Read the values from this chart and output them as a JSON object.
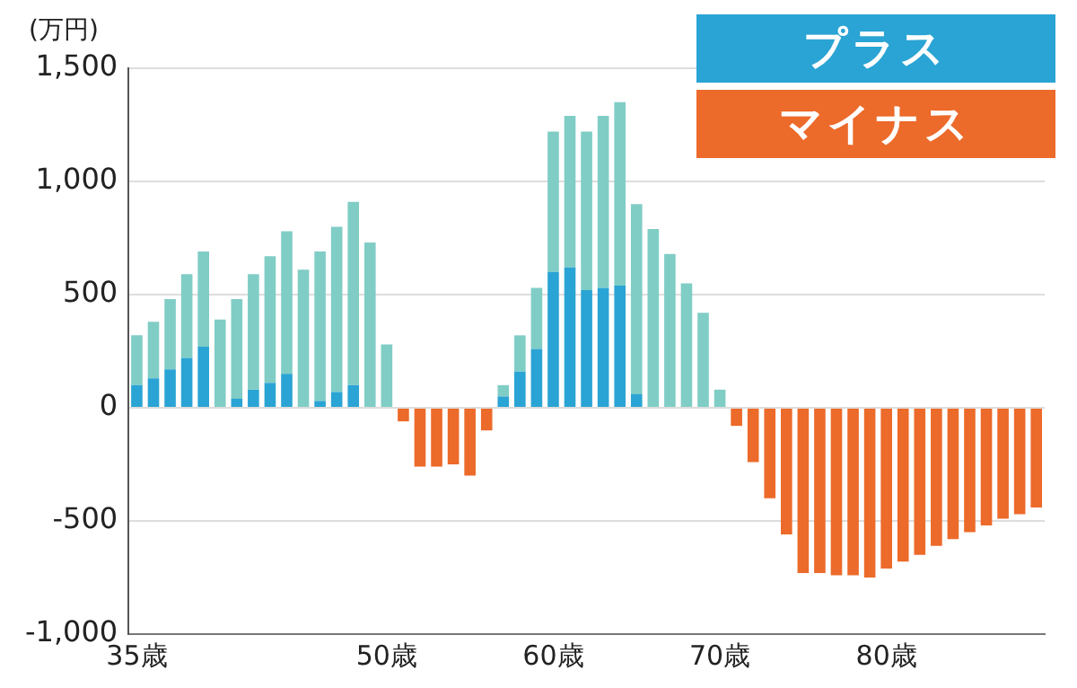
{
  "chart_data": {
    "type": "bar",
    "ylabel": "(万円)",
    "stacked": true,
    "grid": "y",
    "legend": "top right",
    "categories": [
      "35歳",
      null,
      null,
      null,
      null,
      null,
      null,
      null,
      null,
      null,
      null,
      null,
      null,
      null,
      null,
      "50歳",
      null,
      null,
      null,
      null,
      null,
      null,
      null,
      null,
      null,
      "60歳",
      null,
      null,
      null,
      null,
      null,
      null,
      null,
      null,
      null,
      "70歳",
      null,
      null,
      null,
      null,
      null,
      null,
      null,
      null,
      null,
      "80歳",
      null,
      null,
      null,
      null,
      null,
      null,
      null,
      null,
      null
    ],
    "ylim": [
      -1000,
      1500
    ],
    "yticks": [
      {
        "value": -1000,
        "label": "-1,000"
      },
      -500,
      0,
      500,
      {
        "value": 1000,
        "label": "1,000"
      },
      {
        "value": 1500,
        "label": "1,500"
      }
    ],
    "series": [
      {
        "name": "プラス",
        "color": "#2aa4d4",
        "values": [
          100,
          130,
          170,
          220,
          270,
          null,
          40,
          80,
          110,
          150,
          null,
          30,
          70,
          100,
          null,
          null,
          null,
          null,
          null,
          null,
          null,
          null,
          50,
          160,
          260,
          600,
          620,
          520,
          530,
          540,
          60,
          null,
          null,
          null,
          null,
          null,
          null,
          null,
          null,
          null,
          null,
          null,
          null,
          null,
          null,
          null,
          null,
          null,
          null,
          null,
          null,
          null,
          null,
          null,
          null
        ]
      },
      {
        "color": "#80cdc6",
        "values": [
          220,
          250,
          310,
          370,
          420,
          390,
          440,
          510,
          560,
          630,
          610,
          660,
          730,
          810,
          730,
          280,
          null,
          null,
          null,
          null,
          null,
          null,
          50,
          160,
          270,
          620,
          670,
          700,
          760,
          810,
          840,
          790,
          680,
          550,
          420,
          80,
          null,
          null,
          null,
          null,
          null,
          null,
          null,
          null,
          null,
          null,
          null,
          null,
          null,
          null,
          null,
          null,
          null,
          null,
          null
        ]
      },
      {
        "name": "マイナス",
        "color": "#ec6a2a",
        "values": [
          null,
          null,
          null,
          null,
          null,
          null,
          null,
          null,
          null,
          null,
          null,
          null,
          null,
          null,
          null,
          null,
          -60,
          -260,
          -260,
          -250,
          -300,
          -100,
          null,
          null,
          null,
          null,
          null,
          null,
          null,
          null,
          null,
          null,
          null,
          null,
          null,
          null,
          -80,
          -240,
          -400,
          -560,
          -730,
          -730,
          -740,
          -740,
          -750,
          -710,
          -680,
          -650,
          -610,
          -580,
          -550,
          -520,
          -490,
          -470,
          -440
        ]
      }
    ]
  }
}
